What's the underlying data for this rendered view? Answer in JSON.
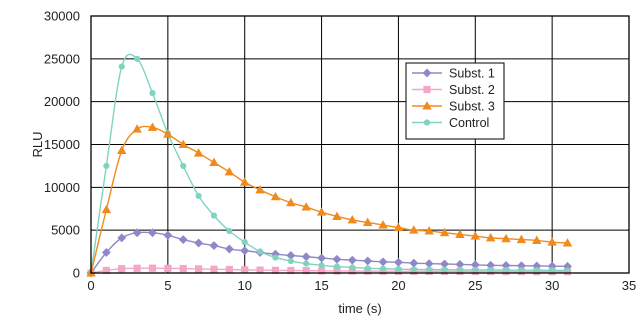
{
  "chart_data": {
    "type": "line",
    "xlabel": "time (s)",
    "ylabel": "RLU",
    "xlim": [
      0,
      35
    ],
    "ylim": [
      0,
      30000
    ],
    "x_ticks": [
      "0",
      "5",
      "10",
      "15",
      "20",
      "25",
      "30",
      "35"
    ],
    "y_ticks": [
      "0",
      "5000",
      "10000",
      "15000",
      "20000",
      "25000",
      "30000"
    ],
    "grid": true,
    "legend_position": "top-right",
    "x": [
      0,
      1,
      2,
      3,
      4,
      5,
      6,
      7,
      8,
      9,
      10,
      11,
      12,
      13,
      14,
      15,
      16,
      17,
      18,
      19,
      20,
      21,
      22,
      23,
      24,
      25,
      26,
      27,
      28,
      29,
      30,
      31
    ],
    "series": [
      {
        "name": "Subst. 1",
        "marker": "diamond",
        "color": "#8e88c8",
        "values": [
          0,
          2400,
          4100,
          4700,
          4700,
          4400,
          3900,
          3500,
          3200,
          2800,
          2600,
          2400,
          2200,
          2050,
          1900,
          1750,
          1600,
          1500,
          1400,
          1300,
          1250,
          1150,
          1100,
          1050,
          1000,
          950,
          900,
          880,
          850,
          820,
          800,
          780
        ]
      },
      {
        "name": "Subst. 2",
        "marker": "square",
        "color": "#f4a6c6",
        "values": [
          0,
          300,
          500,
          550,
          560,
          540,
          520,
          480,
          440,
          400,
          370,
          340,
          310,
          290,
          270,
          250,
          240,
          230,
          220,
          210,
          200,
          195,
          190,
          185,
          180,
          175,
          170,
          165,
          160,
          155,
          150,
          150
        ]
      },
      {
        "name": "Subst. 3",
        "marker": "triangle",
        "color": "#f08a1c",
        "values": [
          0,
          7400,
          14300,
          16800,
          17000,
          16200,
          15000,
          14000,
          12900,
          11800,
          10600,
          9700,
          8900,
          8200,
          7700,
          7100,
          6600,
          6200,
          5900,
          5600,
          5300,
          5000,
          4900,
          4700,
          4500,
          4300,
          4100,
          4000,
          3900,
          3800,
          3600,
          3500
        ]
      },
      {
        "name": "Control",
        "marker": "circle",
        "color": "#7fd4c0",
        "values": [
          0,
          12500,
          24100,
          25000,
          21000,
          16300,
          12500,
          9000,
          6700,
          4900,
          3600,
          2500,
          1800,
          1400,
          1100,
          900,
          750,
          650,
          550,
          500,
          450,
          420,
          400,
          380,
          370,
          360,
          350,
          340,
          330,
          320,
          310,
          300
        ]
      }
    ]
  }
}
